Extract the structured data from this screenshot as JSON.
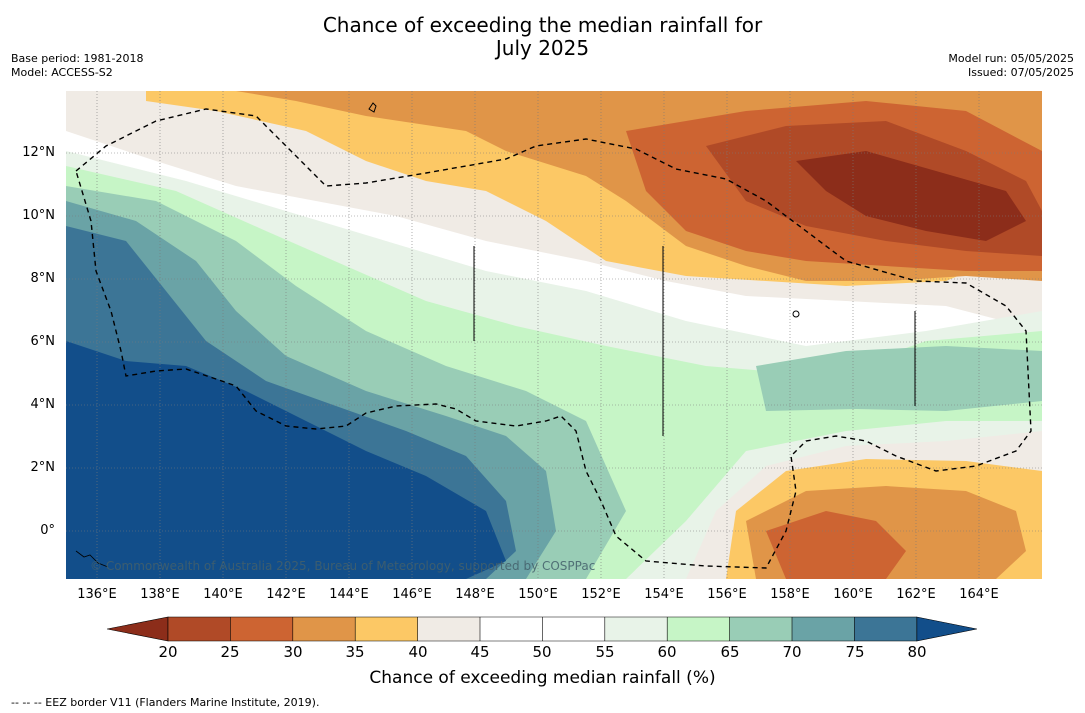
{
  "title": {
    "line1": "Chance of exceeding the median rainfall for",
    "line2": "July 2025"
  },
  "meta": {
    "base_period": "Base period: 1981-2018",
    "model": "Model: ACCESS-S2",
    "model_run": "Model run: 05/05/2025",
    "issued": "Issued: 07/05/2025"
  },
  "map": {
    "lat_labels": [
      "12°N",
      "10°N",
      "8°N",
      "6°N",
      "4°N",
      "2°N",
      "0°"
    ],
    "lon_labels": [
      "136°E",
      "138°E",
      "140°E",
      "142°E",
      "144°E",
      "146°E",
      "148°E",
      "150°E",
      "152°E",
      "154°E",
      "156°E",
      "158°E",
      "160°E",
      "162°E",
      "164°E"
    ],
    "copyright": "© Commonwealth of Australia 2025, Bureau of Meteorology, supported by COSPPac"
  },
  "legend": {
    "ticks": [
      "20",
      "25",
      "30",
      "35",
      "40",
      "45",
      "50",
      "55",
      "60",
      "65",
      "70",
      "75",
      "80"
    ],
    "colors": [
      "#8c2d1a",
      "#b04a27",
      "#cd6432",
      "#e09548",
      "#fcc865",
      "#f0ebe5",
      "#ffffff",
      "#ffffff",
      "#e8f3e8",
      "#c6f5c6",
      "#99cdb6",
      "#6aa3a6",
      "#3c7596",
      "#124e8a"
    ],
    "label": "Chance of exceeding median rainfall (%)"
  },
  "footnote": "--  --  -- EEZ border V11 (Flanders Marine Institute, 2019)."
}
